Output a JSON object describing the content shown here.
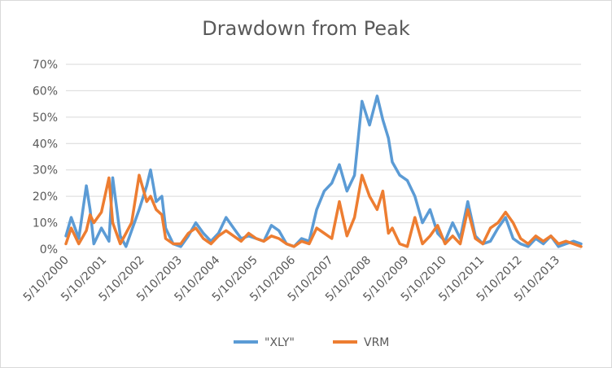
{
  "chart_data": {
    "type": "line",
    "title": "Drawdown from Peak",
    "xlabel": "",
    "ylabel": "",
    "ylim": [
      0,
      0.7
    ],
    "y_ticks": [
      "0%",
      "10%",
      "20%",
      "30%",
      "40%",
      "50%",
      "60%",
      "70%"
    ],
    "x_tick_labels": [
      "5/10/2000",
      "5/10/2001",
      "5/10/2002",
      "5/10/2003",
      "5/10/2004",
      "5/10/2005",
      "5/10/2006",
      "5/10/2007",
      "5/10/2008",
      "5/10/2009",
      "5/10/2010",
      "5/10/2011",
      "5/10/2012",
      "5/10/2013"
    ],
    "x": [
      2000.36,
      2000.5,
      2000.7,
      2000.9,
      2001.0,
      2001.1,
      2001.3,
      2001.5,
      2001.6,
      2001.8,
      2001.95,
      2002.1,
      2002.3,
      2002.5,
      2002.6,
      2002.75,
      2002.9,
      2003.0,
      2003.2,
      2003.4,
      2003.6,
      2003.8,
      2004.0,
      2004.2,
      2004.4,
      2004.6,
      2004.8,
      2005.0,
      2005.2,
      2005.4,
      2005.6,
      2005.8,
      2006.0,
      2006.2,
      2006.4,
      2006.6,
      2006.8,
      2007.0,
      2007.2,
      2007.4,
      2007.6,
      2007.8,
      2008.0,
      2008.2,
      2008.4,
      2008.6,
      2008.75,
      2008.9,
      2009.0,
      2009.2,
      2009.4,
      2009.6,
      2009.8,
      2010.0,
      2010.2,
      2010.4,
      2010.6,
      2010.8,
      2011.0,
      2011.2,
      2011.4,
      2011.6,
      2011.8,
      2012.0,
      2012.2,
      2012.4,
      2012.6,
      2012.8,
      2013.0,
      2013.2,
      2013.4,
      2013.6,
      2013.8,
      2014.0
    ],
    "series": [
      {
        "name": "\"XLY\"",
        "color": "#5b9bd5",
        "values": [
          0.05,
          0.12,
          0.04,
          0.24,
          0.15,
          0.02,
          0.08,
          0.03,
          0.27,
          0.05,
          0.01,
          0.07,
          0.15,
          0.24,
          0.3,
          0.18,
          0.2,
          0.08,
          0.02,
          0.01,
          0.05,
          0.1,
          0.06,
          0.03,
          0.06,
          0.12,
          0.08,
          0.04,
          0.05,
          0.04,
          0.03,
          0.09,
          0.07,
          0.02,
          0.01,
          0.04,
          0.03,
          0.15,
          0.22,
          0.25,
          0.32,
          0.22,
          0.28,
          0.56,
          0.47,
          0.58,
          0.49,
          0.42,
          0.33,
          0.28,
          0.26,
          0.2,
          0.1,
          0.15,
          0.06,
          0.03,
          0.1,
          0.04,
          0.18,
          0.05,
          0.02,
          0.03,
          0.08,
          0.12,
          0.04,
          0.02,
          0.01,
          0.04,
          0.02,
          0.05,
          0.01,
          0.02,
          0.03,
          0.02
        ]
      },
      {
        "name": "VRM",
        "color": "#ed7d31",
        "values": [
          0.02,
          0.08,
          0.02,
          0.07,
          0.13,
          0.1,
          0.14,
          0.27,
          0.1,
          0.02,
          0.06,
          0.1,
          0.28,
          0.18,
          0.2,
          0.15,
          0.13,
          0.04,
          0.02,
          0.02,
          0.06,
          0.08,
          0.04,
          0.02,
          0.05,
          0.07,
          0.05,
          0.03,
          0.06,
          0.04,
          0.03,
          0.05,
          0.04,
          0.02,
          0.01,
          0.03,
          0.02,
          0.08,
          0.06,
          0.04,
          0.18,
          0.05,
          0.12,
          0.28,
          0.2,
          0.15,
          0.22,
          0.06,
          0.08,
          0.02,
          0.01,
          0.12,
          0.02,
          0.05,
          0.09,
          0.02,
          0.05,
          0.02,
          0.15,
          0.04,
          0.02,
          0.08,
          0.1,
          0.14,
          0.1,
          0.04,
          0.02,
          0.05,
          0.03,
          0.05,
          0.02,
          0.03,
          0.02,
          0.01
        ]
      }
    ],
    "grid": true,
    "legend_position": "bottom"
  }
}
